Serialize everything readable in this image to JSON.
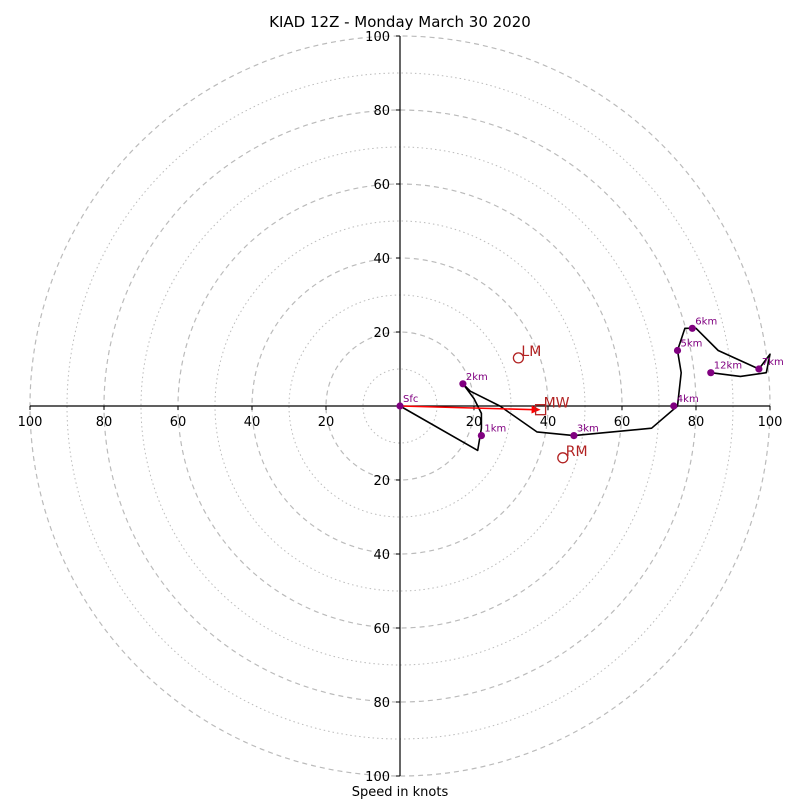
{
  "chart_data": {
    "type": "scatter",
    "subtype": "hodograph",
    "title": "KIAD 12Z - Monday March 30 2020",
    "xlabel": "Speed in knots",
    "ylabel": "",
    "units": "knots",
    "xlim": [
      -100,
      100
    ],
    "ylim": [
      -100,
      100
    ],
    "range_rings": {
      "dashed": [
        20,
        40,
        60,
        80,
        100
      ],
      "dotted": [
        10,
        30,
        50,
        70,
        90
      ]
    },
    "tick_labels": [
      "20",
      "40",
      "60",
      "80",
      "100"
    ],
    "hodograph_trace": {
      "color": "#000000",
      "points": [
        [
          0,
          0
        ],
        [
          21,
          -12
        ],
        [
          22,
          -6
        ],
        [
          22,
          -2
        ],
        [
          20,
          2
        ],
        [
          17,
          6
        ],
        [
          19,
          4
        ],
        [
          27,
          0
        ],
        [
          37,
          -7
        ],
        [
          47,
          -8
        ],
        [
          68,
          -6
        ],
        [
          75,
          0
        ],
        [
          76,
          9
        ],
        [
          75,
          15
        ],
        [
          77,
          21
        ],
        [
          80,
          21
        ],
        [
          86,
          15
        ],
        [
          97,
          10
        ],
        [
          100,
          14
        ],
        [
          99,
          9
        ],
        [
          92,
          8
        ],
        [
          84,
          9
        ]
      ]
    },
    "height_labels": [
      {
        "label": "Sfc",
        "x": 0,
        "y": 0
      },
      {
        "label": "1km",
        "x": 22,
        "y": -8
      },
      {
        "label": "2km",
        "x": 17,
        "y": 6
      },
      {
        "label": "3km",
        "x": 47,
        "y": -8
      },
      {
        "label": "4km",
        "x": 74,
        "y": 0
      },
      {
        "label": "5km",
        "x": 75,
        "y": 15
      },
      {
        "label": "6km",
        "x": 79,
        "y": 21
      },
      {
        "label": "7km",
        "x": 97,
        "y": 10
      },
      {
        "label": "12km",
        "x": 84,
        "y": 9
      }
    ],
    "height_marker_color": "#800080",
    "storm_motion": [
      {
        "label": "LM",
        "x": 32,
        "y": 13,
        "marker": "circle"
      },
      {
        "label": "RM",
        "x": 44,
        "y": -14,
        "marker": "circle"
      },
      {
        "label": "MW",
        "x": 38,
        "y": -1,
        "marker": "square"
      }
    ],
    "storm_motion_color": "#b22222",
    "shear_vector": {
      "from": [
        0,
        0
      ],
      "to": [
        38,
        -1
      ],
      "color": "#ff0000"
    },
    "grid_color": "#bbbbbb"
  }
}
